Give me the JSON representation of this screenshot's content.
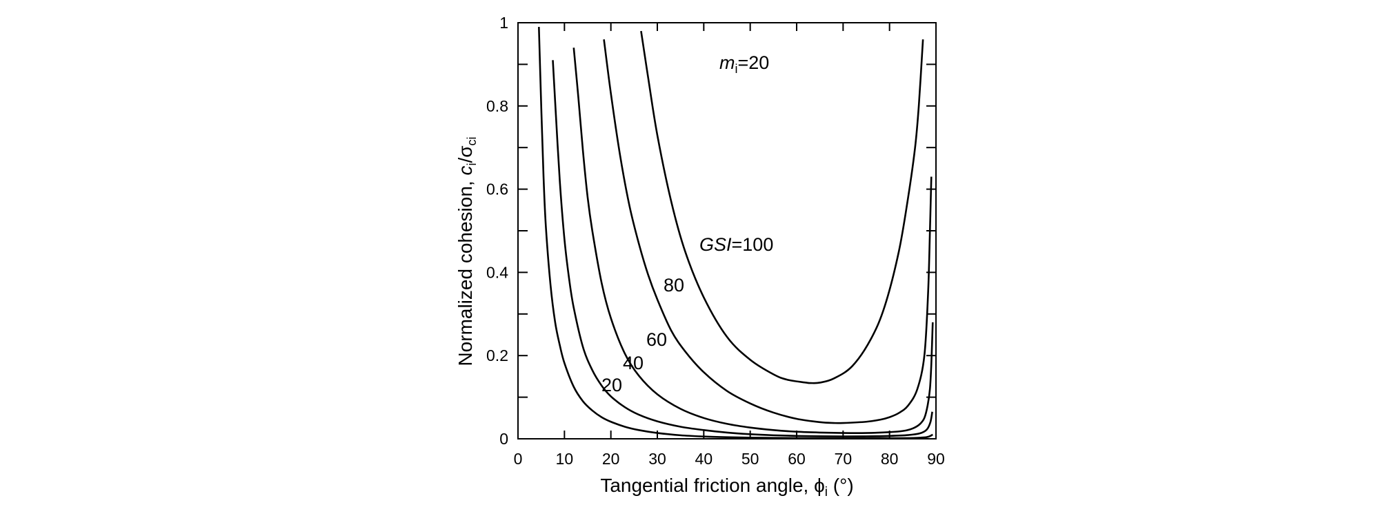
{
  "chart_data": {
    "type": "line",
    "xlabel": {
      "main": "Tangential friction angle, ",
      "symbol": "ϕ",
      "sub": "i",
      "unit": " (°)"
    },
    "ylabel": {
      "main": "Normalized cohesion, ",
      "c": "c",
      "c_sub": "i",
      "slash": "/",
      "sigma": "σ",
      "sigma_sub": "ci"
    },
    "xlim": [
      0,
      90
    ],
    "ylim": [
      0,
      1
    ],
    "x_ticks": [
      0,
      10,
      20,
      30,
      40,
      50,
      60,
      70,
      80,
      90
    ],
    "x_tick_labels": [
      "0",
      "10",
      "20",
      "30",
      "40",
      "50",
      "60",
      "70",
      "80",
      "90"
    ],
    "y_ticks": [
      0,
      0.2,
      0.4,
      0.6,
      0.8,
      1
    ],
    "y_tick_labels": [
      "0",
      "0.2",
      "0.4",
      "0.6",
      "0.8",
      "1"
    ],
    "grid": false,
    "annotations": {
      "mi": {
        "m": "m",
        "sub": "i",
        "rest": "=20"
      },
      "gsi": {
        "italic": "GSI",
        "rest": "=100"
      },
      "labels": [
        "80",
        "60",
        "40",
        "20"
      ]
    },
    "series": [
      {
        "gsi": 100,
        "x": [
          26.5,
          28,
          30,
          33,
          36,
          40,
          45,
          50,
          55,
          58,
          62,
          63,
          65,
          68,
          72,
          76,
          79,
          82,
          84,
          85.5,
          86.3,
          87.2
        ],
        "y": [
          0.98,
          0.87,
          0.73,
          0.57,
          0.45,
          0.34,
          0.245,
          0.19,
          0.155,
          0.142,
          0.135,
          0.134,
          0.135,
          0.145,
          0.175,
          0.24,
          0.32,
          0.45,
          0.58,
          0.7,
          0.8,
          0.96
        ]
      },
      {
        "gsi": 80,
        "x": [
          18.5,
          20,
          22,
          24,
          26,
          28,
          30,
          33,
          36,
          40,
          45,
          50,
          55,
          60,
          65,
          68,
          70,
          75,
          78,
          80,
          82,
          84,
          86,
          87.5,
          88.3,
          88.7,
          89
        ],
        "y": [
          0.96,
          0.83,
          0.68,
          0.56,
          0.47,
          0.395,
          0.335,
          0.26,
          0.21,
          0.16,
          0.115,
          0.085,
          0.063,
          0.048,
          0.04,
          0.038,
          0.038,
          0.041,
          0.046,
          0.052,
          0.062,
          0.08,
          0.12,
          0.2,
          0.35,
          0.5,
          0.63
        ]
      },
      {
        "gsi": 60,
        "x": [
          12,
          13,
          14,
          15,
          16,
          18,
          20,
          23,
          26,
          30,
          35,
          40,
          45,
          50,
          55,
          60,
          65,
          70,
          75,
          80,
          83,
          85,
          86.5,
          87.5,
          88.2,
          88.7,
          89.0,
          89.3
        ],
        "y": [
          0.94,
          0.82,
          0.69,
          0.58,
          0.5,
          0.375,
          0.29,
          0.205,
          0.152,
          0.107,
          0.072,
          0.05,
          0.036,
          0.027,
          0.021,
          0.017,
          0.015,
          0.014,
          0.014,
          0.016,
          0.019,
          0.025,
          0.035,
          0.05,
          0.08,
          0.12,
          0.18,
          0.28
        ]
      },
      {
        "gsi": 40,
        "x": [
          7.5,
          8,
          9,
          10,
          11,
          12,
          14,
          16,
          18,
          20,
          23,
          26,
          30,
          35,
          40,
          45,
          50,
          55,
          60,
          65,
          70,
          75,
          80,
          84,
          86.5,
          88,
          88.8,
          89.2
        ],
        "y": [
          0.91,
          0.81,
          0.62,
          0.48,
          0.385,
          0.315,
          0.22,
          0.165,
          0.128,
          0.102,
          0.076,
          0.058,
          0.042,
          0.029,
          0.021,
          0.015,
          0.011,
          0.0085,
          0.007,
          0.0062,
          0.0058,
          0.006,
          0.007,
          0.009,
          0.013,
          0.022,
          0.04,
          0.065
        ]
      },
      {
        "gsi": 20,
        "x": [
          4.5,
          5,
          5.5,
          6,
          7,
          8,
          9,
          10,
          12,
          14,
          16,
          18,
          20,
          23,
          26,
          30,
          35,
          40,
          45,
          50,
          55,
          60,
          65,
          70,
          75,
          80,
          85,
          88,
          89.3
        ],
        "y": [
          0.99,
          0.8,
          0.63,
          0.51,
          0.37,
          0.28,
          0.225,
          0.182,
          0.125,
          0.09,
          0.068,
          0.052,
          0.041,
          0.029,
          0.021,
          0.014,
          0.0085,
          0.0055,
          0.0038,
          0.0028,
          0.0022,
          0.0018,
          0.0016,
          0.0015,
          0.0015,
          0.0016,
          0.002,
          0.004,
          0.01
        ]
      }
    ]
  }
}
